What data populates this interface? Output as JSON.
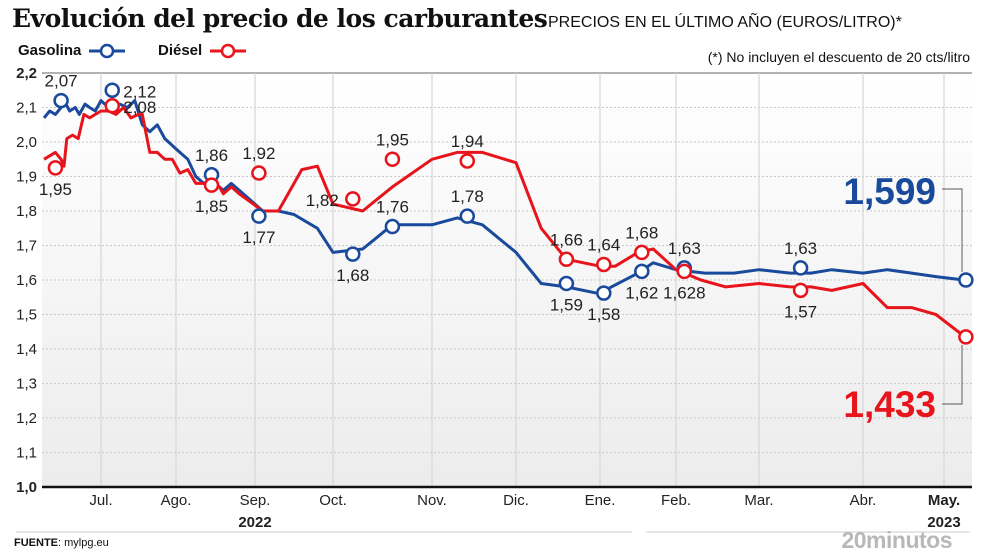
{
  "header": {
    "title": "Evolución del precio de los carburantes",
    "subtitle": "PRECIOS EN EL ÚLTIMO AÑO (EUROS/LITRO)*",
    "note": "(*) No incluyen el descuento de 20 cts/litro"
  },
  "footer": {
    "source_label": "FUENTE",
    "source_value": ": mylpg.eu",
    "brand": "20minutos"
  },
  "colors": {
    "gasolina": "#1a4a9c",
    "diesel": "#e8141c"
  },
  "chart_data": {
    "type": "line",
    "title": "Evolución del precio de los carburantes",
    "subtitle": "PRECIOS EN EL ÚLTIMO AÑO (EUROS/LITRO)*",
    "xlabel": "",
    "ylabel": "",
    "ylim": [
      1.0,
      2.2
    ],
    "yticks": [
      "1,0",
      "1,1",
      "1,2",
      "1,3",
      "1,4",
      "1,5",
      "1,6",
      "1,7",
      "1,8",
      "1,9",
      "2,0",
      "2,1",
      "2,2"
    ],
    "ytick_values": [
      1.0,
      1.1,
      1.2,
      1.3,
      1.4,
      1.5,
      1.6,
      1.7,
      1.8,
      1.9,
      2.0,
      2.1,
      2.2
    ],
    "xlim": [
      0,
      11.3
    ],
    "month_ticks": [
      {
        "label": "Jul.",
        "x": 1.0,
        "bold": false
      },
      {
        "label": "Ago.",
        "x": 2.0,
        "bold": false
      },
      {
        "label": "Sep.",
        "x": 3.0,
        "bold": false
      },
      {
        "label": "Oct.",
        "x": 4.0,
        "bold": false
      },
      {
        "label": "Nov.",
        "x": 5.0,
        "bold": false
      },
      {
        "label": "Dic.",
        "x": 6.0,
        "bold": false
      },
      {
        "label": "Ene.",
        "x": 7.0,
        "bold": false
      },
      {
        "label": "Feb.",
        "x": 8.0,
        "bold": false
      },
      {
        "label": "Mar.",
        "x": 9.0,
        "bold": false
      },
      {
        "label": "Abr.",
        "x": 10.0,
        "bold": false
      },
      {
        "label": "May.",
        "x": 11.0,
        "bold": true
      }
    ],
    "year_labels": [
      {
        "label": "2022",
        "x": 3.0
      },
      {
        "label": "2023",
        "x": 11.0
      }
    ],
    "grid": true,
    "legend": "top-left",
    "series": [
      {
        "name": "Gasolina",
        "color": "#1a4a9c",
        "x": [
          0.0,
          0.1,
          0.2,
          0.3,
          0.35,
          0.45,
          0.55,
          0.62,
          0.72,
          0.8,
          0.9,
          1.0,
          1.05,
          1.15,
          1.25,
          1.35,
          1.45,
          1.55,
          1.65,
          1.75,
          1.85,
          1.95,
          2.05,
          2.15,
          2.25,
          2.35,
          2.45,
          2.55,
          2.6,
          2.7,
          2.8,
          3.1,
          3.3,
          3.5,
          3.8,
          4.0,
          4.3,
          4.6,
          5.0,
          5.3,
          5.6,
          6.0,
          6.3,
          6.6,
          7.0,
          7.15,
          7.5,
          7.7,
          8.0,
          8.35,
          8.7,
          9.0,
          9.3,
          9.5,
          9.7,
          10.0,
          10.3,
          10.6,
          10.9,
          11.27
        ],
        "values": [
          2.07,
          2.09,
          2.08,
          2.1,
          2.12,
          2.09,
          2.1,
          2.08,
          2.11,
          2.1,
          2.09,
          2.12,
          2.11,
          2.1,
          2.11,
          2.1,
          2.12,
          2.05,
          2.03,
          2.05,
          2.01,
          1.99,
          1.97,
          1.95,
          1.9,
          1.88,
          1.89,
          1.87,
          1.86,
          1.88,
          1.86,
          1.8,
          1.8,
          1.79,
          1.75,
          1.68,
          1.69,
          1.76,
          1.76,
          1.78,
          1.76,
          1.68,
          1.59,
          1.58,
          1.56,
          1.58,
          1.62,
          1.65,
          1.63,
          1.62,
          1.62,
          1.63,
          1.62,
          1.62,
          1.63,
          1.62,
          1.63,
          1.62,
          1.61,
          1.599
        ]
      },
      {
        "name": "Diésel",
        "color": "#e8141c",
        "x": [
          0.0,
          0.1,
          0.2,
          0.3,
          0.35,
          0.4,
          0.5,
          0.6,
          0.7,
          0.8,
          0.9,
          1.0,
          1.1,
          1.2,
          1.3,
          1.4,
          1.5,
          1.55,
          1.65,
          1.75,
          1.85,
          1.95,
          2.05,
          2.15,
          2.25,
          2.35,
          2.45,
          2.55,
          2.6,
          2.7,
          2.8,
          3.1,
          3.3,
          3.6,
          3.8,
          4.0,
          4.3,
          4.6,
          5.0,
          5.3,
          5.6,
          6.0,
          6.3,
          6.6,
          7.0,
          7.2,
          7.5,
          7.7,
          8.0,
          8.3,
          8.6,
          9.0,
          9.3,
          9.5,
          9.7,
          10.0,
          10.3,
          10.6,
          10.9,
          11.27
        ],
        "values": [
          1.95,
          1.96,
          1.97,
          1.95,
          1.93,
          2.01,
          2.02,
          2.01,
          2.08,
          2.07,
          2.08,
          2.09,
          2.09,
          2.08,
          2.1,
          2.07,
          2.08,
          2.08,
          1.97,
          1.97,
          1.95,
          1.95,
          1.91,
          1.92,
          1.88,
          1.88,
          1.87,
          1.87,
          1.85,
          1.87,
          1.85,
          1.8,
          1.8,
          1.92,
          1.93,
          1.82,
          1.8,
          1.87,
          1.95,
          1.97,
          1.97,
          1.94,
          1.75,
          1.66,
          1.64,
          1.64,
          1.68,
          1.69,
          1.63,
          1.6,
          1.58,
          1.59,
          1.58,
          1.58,
          1.57,
          1.59,
          1.52,
          1.52,
          1.5,
          1.433
        ]
      }
    ],
    "annotations": [
      {
        "series": "Gasolina",
        "label": "2,07",
        "x": 0.3,
        "value": 2.12,
        "pos": "above"
      },
      {
        "series": "Gasolina",
        "label": "2,12",
        "x": 1.15,
        "value": 2.15,
        "pos": "right"
      },
      {
        "series": "Gasolina",
        "label": "1,86",
        "x": 2.45,
        "value": 1.905,
        "pos": "above"
      },
      {
        "series": "Gasolina",
        "label": "1,77",
        "x": 3.05,
        "value": 1.785,
        "pos": "below"
      },
      {
        "series": "Gasolina",
        "label": "1,68",
        "x": 4.2,
        "value": 1.675,
        "pos": "below"
      },
      {
        "series": "Gasolina",
        "label": "1,76",
        "x": 4.6,
        "value": 1.755,
        "pos": "above"
      },
      {
        "series": "Gasolina",
        "label": "1,78",
        "x": 5.42,
        "value": 1.785,
        "pos": "above"
      },
      {
        "series": "Gasolina",
        "label": "1,59",
        "x": 6.6,
        "value": 1.59,
        "pos": "below"
      },
      {
        "series": "Gasolina",
        "label": "1,58",
        "x": 7.05,
        "value": 1.562,
        "pos": "below"
      },
      {
        "series": "Gasolina",
        "label": "1,62",
        "x": 7.55,
        "value": 1.625,
        "pos": "below"
      },
      {
        "series": "Gasolina",
        "label": "1,63",
        "x": 8.1,
        "value": 1.635,
        "pos": "above"
      },
      {
        "series": "Gasolina",
        "label": "1,63",
        "x": 9.4,
        "value": 1.635,
        "pos": "above"
      },
      {
        "series": "Gasolina",
        "label": "1,599",
        "x": 11.27,
        "value": 1.6,
        "pos": "callout"
      },
      {
        "series": "Diésel",
        "label": "1,95",
        "x": 0.2,
        "value": 1.925,
        "pos": "below"
      },
      {
        "series": "Diésel",
        "label": "2,08",
        "x": 1.15,
        "value": 2.105,
        "pos": "right"
      },
      {
        "series": "Diésel",
        "label": "1,85",
        "x": 2.45,
        "value": 1.875,
        "pos": "below"
      },
      {
        "series": "Diésel",
        "label": "1,92",
        "x": 3.05,
        "value": 1.91,
        "pos": "above"
      },
      {
        "series": "Diésel",
        "label": "1,82",
        "x": 4.2,
        "value": 1.835,
        "pos": "left"
      },
      {
        "series": "Diésel",
        "label": "1,95",
        "x": 4.6,
        "value": 1.95,
        "pos": "above"
      },
      {
        "series": "Diésel",
        "label": "1,94",
        "x": 5.42,
        "value": 1.945,
        "pos": "above"
      },
      {
        "series": "Diésel",
        "label": "1,66",
        "x": 6.6,
        "value": 1.66,
        "pos": "above"
      },
      {
        "series": "Diésel",
        "label": "1,64",
        "x": 7.05,
        "value": 1.645,
        "pos": "above"
      },
      {
        "series": "Diésel",
        "label": "1,68",
        "x": 7.55,
        "value": 1.68,
        "pos": "above"
      },
      {
        "series": "Diésel",
        "label": "1,628",
        "x": 8.1,
        "value": 1.625,
        "pos": "below"
      },
      {
        "series": "Diésel",
        "label": "1,57",
        "x": 9.4,
        "value": 1.57,
        "pos": "below"
      },
      {
        "series": "Diésel",
        "label": "1,433",
        "x": 11.27,
        "value": 1.435,
        "pos": "callout"
      }
    ]
  }
}
